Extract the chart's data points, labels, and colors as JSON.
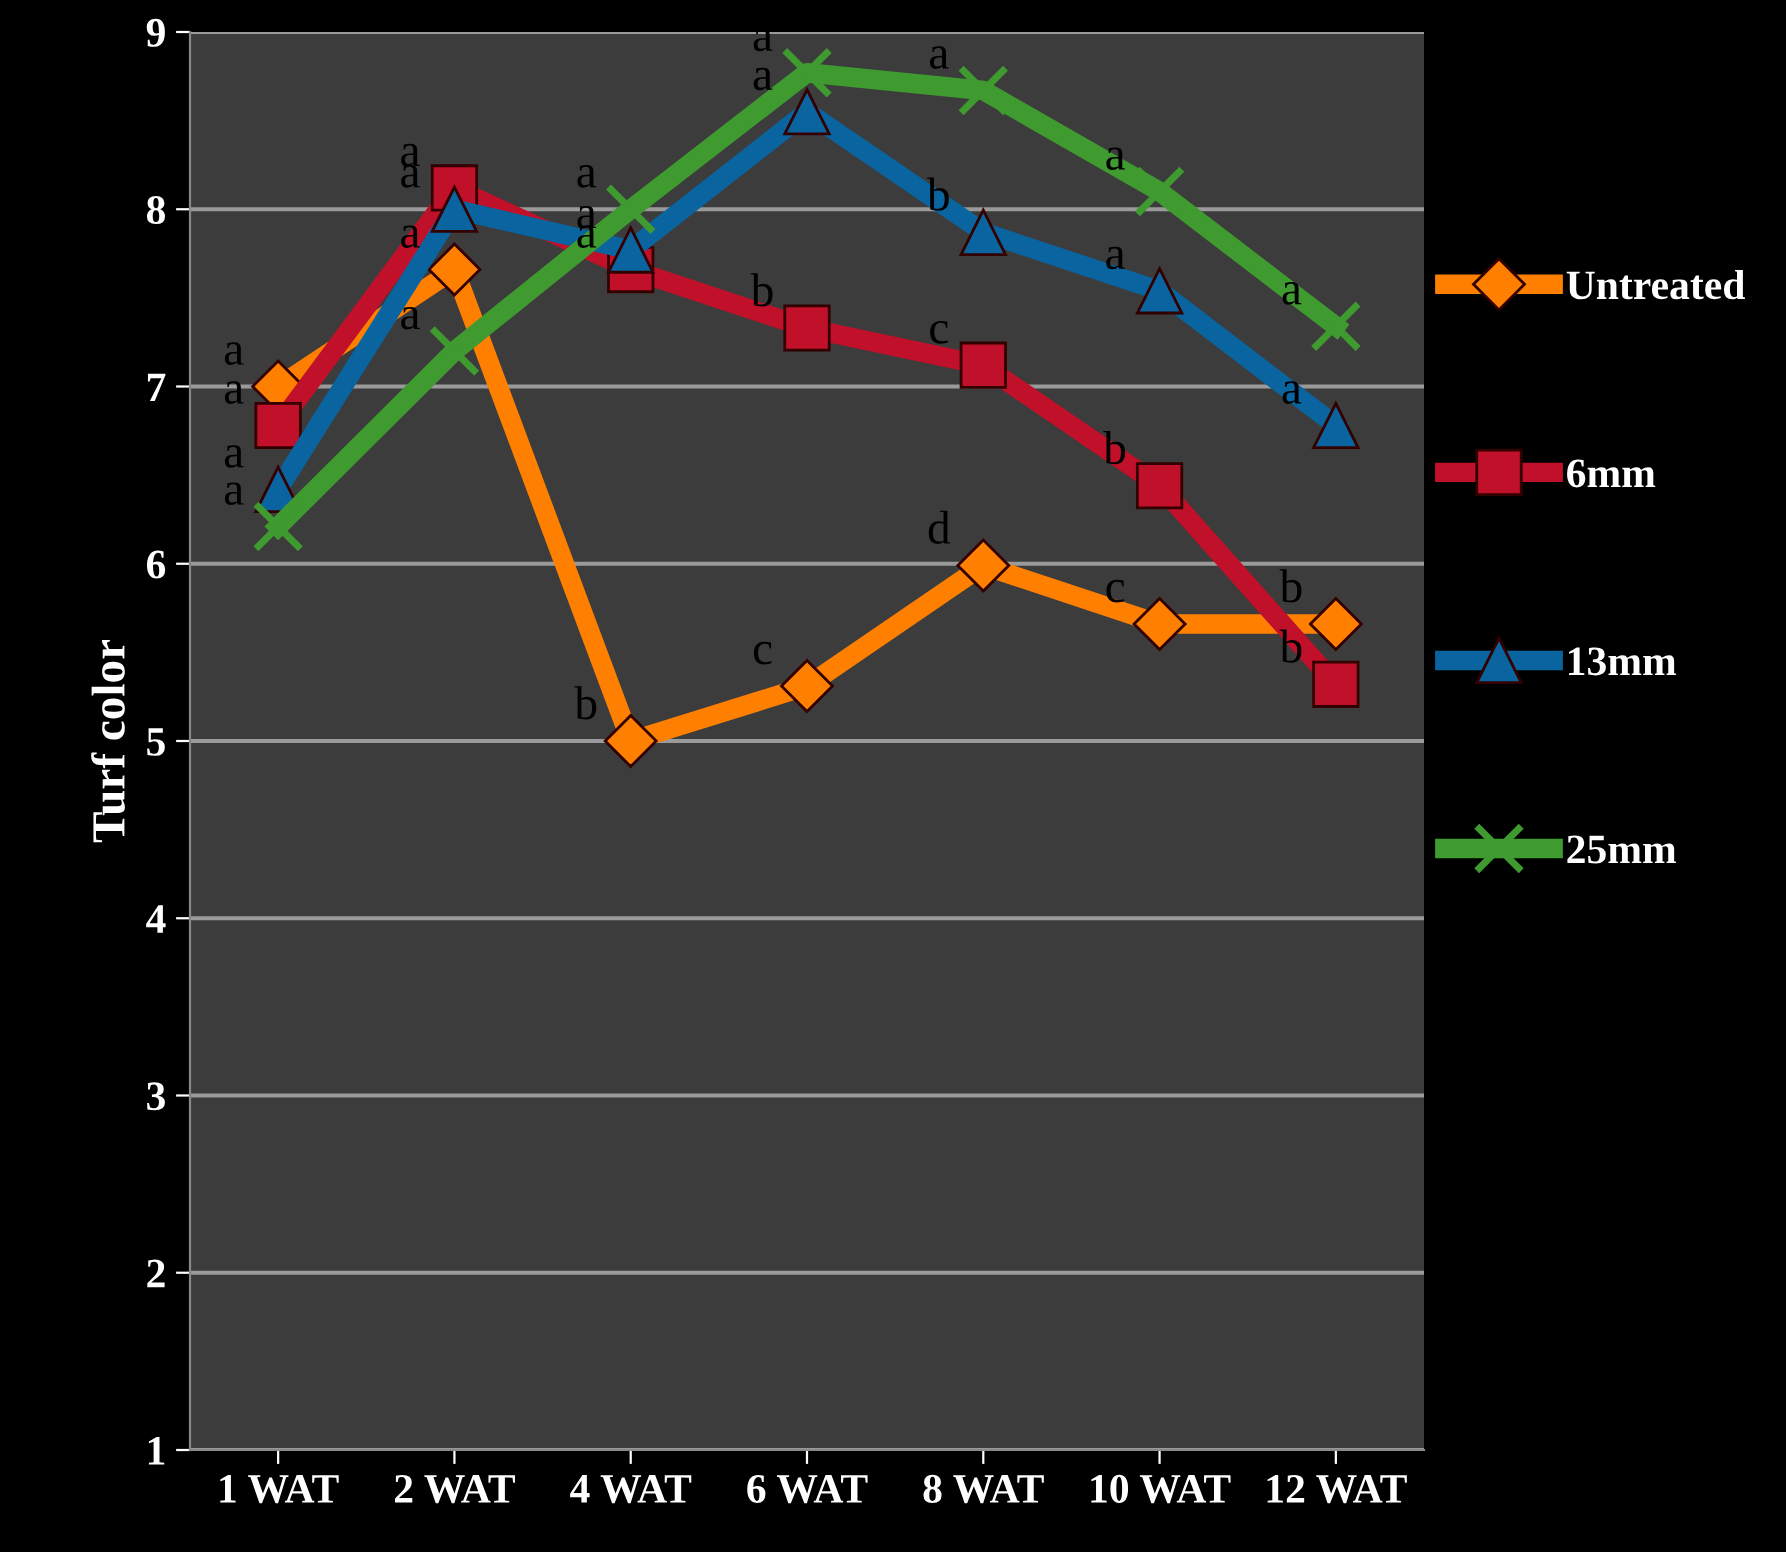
{
  "chart_data": {
    "type": "line",
    "ylabel": "Turf color",
    "categories": [
      "1 WAT",
      "2 WAT",
      "4 WAT",
      "6 WAT",
      "8 WAT",
      "10 WAT",
      "12 WAT"
    ],
    "series": [
      {
        "name": "Untreated",
        "color": "#ff8000",
        "marker": "diamond",
        "values": [
          7.0,
          7.66,
          5.0,
          5.31,
          5.99,
          5.66,
          5.66
        ],
        "value_labels": [
          "a",
          "a",
          "b",
          "c",
          "d",
          "c",
          "b"
        ]
      },
      {
        "name": "6mm",
        "color": "#c0102a",
        "marker": "square",
        "values": [
          6.78,
          8.12,
          7.66,
          7.33,
          7.12,
          6.44,
          5.32
        ],
        "value_labels": [
          "a",
          "a",
          "a",
          "b",
          "c",
          "b",
          "b"
        ]
      },
      {
        "name": "13mm",
        "color": "#0a64a0",
        "marker": "triangle",
        "values": [
          6.42,
          8.0,
          7.77,
          8.55,
          7.87,
          7.54,
          6.78
        ],
        "value_labels": [
          "a",
          "a",
          "a",
          "a",
          "b",
          "a",
          "a"
        ]
      },
      {
        "name": "25mm",
        "color": "#3f9a2f",
        "marker": "cross",
        "values": [
          6.21,
          7.2,
          8.0,
          8.77,
          8.67,
          8.1,
          7.34
        ],
        "value_labels": [
          "a",
          "a",
          "a",
          "a",
          "a",
          "a",
          "a"
        ]
      }
    ],
    "ylim": [
      1,
      9
    ],
    "yticks": [
      1,
      2,
      3,
      4,
      5,
      6,
      7,
      8,
      9
    ],
    "grid": "y",
    "legend": "right",
    "line_style": "solid"
  }
}
